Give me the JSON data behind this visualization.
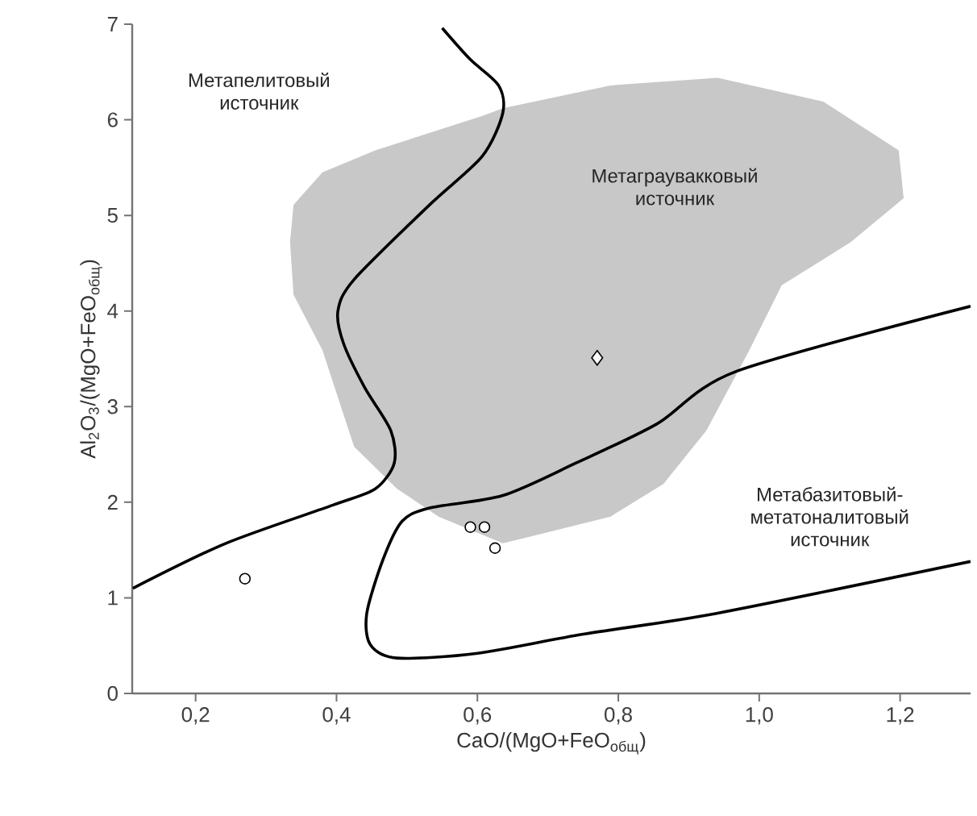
{
  "chart_data": {
    "type": "scatter",
    "xlabel": "CaO/(MgO+FeO$_{общ}$)",
    "ylabel": "Al$_{2}$O$_{3}$/(MgO+FeO$_{общ}$)",
    "xlim": [
      0.11,
      1.3
    ],
    "ylim": [
      0,
      7
    ],
    "xticks": [
      {
        "value": 0.2,
        "label": "0,2"
      },
      {
        "value": 0.4,
        "label": "0,4"
      },
      {
        "value": 0.6,
        "label": "0,6"
      },
      {
        "value": 0.8,
        "label": "0,8"
      },
      {
        "value": 1.0,
        "label": "1,0"
      },
      {
        "value": 1.2,
        "label": "1,2"
      }
    ],
    "yticks": [
      0,
      1,
      2,
      3,
      4,
      5,
      6,
      7
    ],
    "grid": false,
    "annotations": [
      "Метапелитовый источник",
      "Метаграувакковый источник",
      "Метабазитовый-метатоналитовый источник"
    ],
    "series": [
      {
        "type": "area",
        "color": "#c8c8c8",
        "x": [
          0.334,
          0.339,
          0.38,
          0.455,
          0.607,
          0.636,
          0.789,
          0.941,
          1.091,
          1.198,
          1.205,
          1.13,
          1.032,
          0.986,
          0.925,
          0.864,
          0.789,
          0.675,
          0.636,
          0.545,
          0.486,
          0.425,
          0.38,
          0.339
        ],
        "values": [
          4.72,
          5.11,
          5.45,
          5.68,
          6.04,
          6.12,
          6.36,
          6.44,
          6.19,
          5.68,
          5.18,
          4.72,
          4.27,
          3.59,
          2.75,
          2.19,
          1.85,
          1.64,
          1.57,
          1.85,
          2.14,
          2.58,
          3.59,
          4.17
        ]
      },
      {
        "type": "line",
        "color": "#000000",
        "line_style": "solid",
        "x": [
          0.111,
          0.243,
          0.395,
          0.455,
          0.482,
          0.477,
          0.44,
          0.41,
          0.402,
          0.425,
          0.532,
          0.607,
          0.636,
          0.63,
          0.59,
          0.55
        ],
        "values": [
          1.1,
          1.57,
          1.97,
          2.14,
          2.41,
          2.75,
          3.2,
          3.66,
          4.0,
          4.33,
          5.11,
          5.62,
          6.07,
          6.36,
          6.63,
          6.96
        ]
      },
      {
        "type": "line",
        "color": "#000000",
        "line_style": "solid",
        "x": [
          1.3,
          0.968,
          0.855,
          0.74,
          0.636,
          0.532,
          0.493,
          0.466,
          0.443,
          0.448,
          0.486,
          0.6,
          0.75,
          0.941,
          1.3
        ],
        "values": [
          4.05,
          3.37,
          2.82,
          2.41,
          2.07,
          1.94,
          1.8,
          1.4,
          0.84,
          0.51,
          0.37,
          0.42,
          0.62,
          0.84,
          1.38
        ]
      },
      {
        "color": "#000000",
        "marker": "circle",
        "x": [
          0.27,
          0.59,
          0.61,
          0.625
        ],
        "values": [
          1.2,
          1.74,
          1.74,
          1.52
        ]
      },
      {
        "color": "#000000",
        "marker": "diamond",
        "x": [
          0.77
        ],
        "values": [
          3.51
        ]
      }
    ]
  }
}
